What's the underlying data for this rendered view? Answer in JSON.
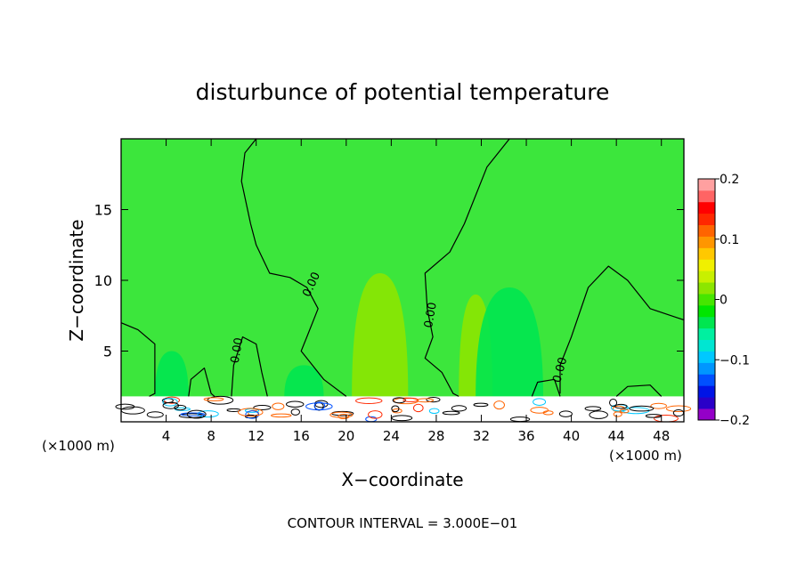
{
  "chart_data": {
    "type": "heatmap",
    "title": "disturbunce of potential temperature",
    "xlabel": "X−coordinate",
    "ylabel": "Z−coordinate",
    "x_unit_left": "(×1000 m)",
    "x_unit_right": "(×1000 m)",
    "xlim": [
      0,
      50
    ],
    "ylim": [
      0,
      20
    ],
    "x_ticks": [
      4,
      8,
      12,
      16,
      20,
      24,
      28,
      32,
      36,
      40,
      44,
      48
    ],
    "x_tick_labels": [
      "4",
      "8",
      "12",
      "16",
      "20",
      "24",
      "28",
      "32",
      "36",
      "40",
      "44",
      "48"
    ],
    "y_ticks": [
      5,
      10,
      15
    ],
    "y_tick_labels": [
      "5",
      "10",
      "15"
    ],
    "contour_label": "0.00",
    "footer": "CONTOUR INTERVAL = 3.000E−01",
    "colorbar": {
      "range": [
        -0.2,
        0.2
      ],
      "ticks": [
        0.2,
        0.1,
        0,
        -0.1,
        -0.2
      ],
      "tick_labels": [
        "0.2",
        "0.1",
        "0",
        "−0.1",
        "−0.2"
      ],
      "colors": [
        "#9400c8",
        "#2a00c8",
        "#0014e6",
        "#0050ff",
        "#0096ff",
        "#00c8ff",
        "#00e6d2",
        "#00f0a0",
        "#00e650",
        "#00e600",
        "#46e600",
        "#8ce600",
        "#c8f000",
        "#f0f000",
        "#ffc800",
        "#ff9600",
        "#ff6400",
        "#ff2800",
        "#ff0000",
        "#ff6464",
        "#ffa0a0"
      ]
    },
    "background_color": "#3ce63c",
    "regions": [
      {
        "name": "slightly-positive-column-1",
        "value": 0.02,
        "x": [
          20.5,
          25.5
        ],
        "z": [
          1.8,
          10.5
        ]
      },
      {
        "name": "slightly-positive-column-2",
        "value": 0.015,
        "x": [
          30,
          33
        ],
        "z": [
          1.8,
          9
        ]
      },
      {
        "name": "negative-plume-1",
        "value": -0.04,
        "x": [
          31.5,
          37.5
        ],
        "z": [
          1.8,
          9.5
        ]
      },
      {
        "name": "negative-plume-2",
        "value": -0.04,
        "x": [
          3,
          6
        ],
        "z": [
          1.8,
          5
        ]
      },
      {
        "name": "negative-plume-3",
        "value": -0.03,
        "x": [
          14.5,
          18
        ],
        "z": [
          1.8,
          4
        ]
      }
    ]
  }
}
